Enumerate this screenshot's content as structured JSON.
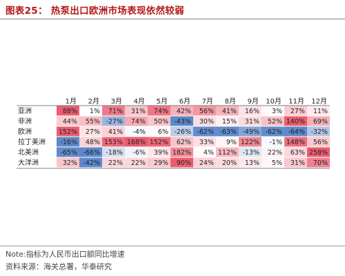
{
  "figure": {
    "title": "图表25：  热泵出口欧洲市场表现依然较弱",
    "note": "Note:指标为人民币出口额同比增速",
    "source": "资料来源：海关总署，华泰研究"
  },
  "colors": {
    "title": "#b51818",
    "positive": "#e8384f",
    "negative": "#3b6fc0",
    "text": "#222222"
  },
  "chart_data": {
    "type": "heatmap",
    "columns": [
      "1月",
      "2月",
      "3月",
      "4月",
      "5月",
      "6月",
      "7月",
      "8月",
      "9月",
      "10月",
      "11月",
      "12月"
    ],
    "rows": [
      "亚洲",
      "非洲",
      "欧洲",
      "拉丁美洲",
      "北美洲",
      "大洋洲"
    ],
    "values": [
      [
        88,
        1,
        71,
        31,
        74,
        42,
        56,
        41,
        16,
        3,
        27,
        11
      ],
      [
        44,
        55,
        -27,
        74,
        50,
        -43,
        30,
        15,
        31,
        52,
        140,
        69
      ],
      [
        152,
        27,
        41,
        -4,
        6,
        -26,
        -62,
        -63,
        -49,
        -62,
        -64,
        -32
      ],
      [
        -16,
        48,
        153,
        168,
        152,
        62,
        33,
        9,
        122,
        -1,
        148,
        56
      ],
      [
        -65,
        -66,
        -18,
        -6,
        39,
        182,
        4,
        112,
        -13,
        22,
        63,
        258
      ],
      [
        32,
        -42,
        22,
        22,
        29,
        90,
        24,
        20,
        13,
        5,
        31,
        70
      ]
    ],
    "unit": "%",
    "color_scale": "diverging red-white-blue, per row"
  }
}
